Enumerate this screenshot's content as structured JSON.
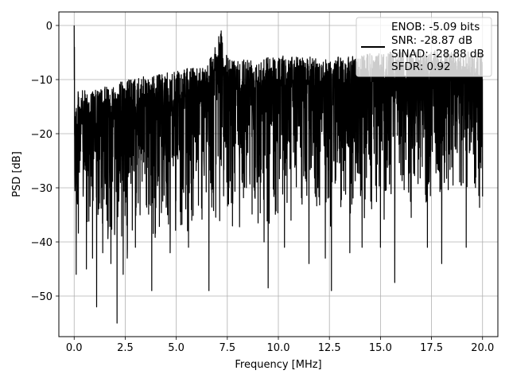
{
  "chart_data": {
    "type": "line",
    "xlabel": "Frequency [MHz]",
    "ylabel": "PSD [dB]",
    "xlim": [
      -0.75,
      20.75
    ],
    "ylim": [
      -57.5,
      2.5
    ],
    "xticks": [
      0.0,
      2.5,
      5.0,
      7.5,
      10.0,
      12.5,
      15.0,
      17.5,
      20.0
    ],
    "xtick_labels": [
      "0.0",
      "2.5",
      "5.0",
      "7.5",
      "10.0",
      "12.5",
      "15.0",
      "17.5",
      "20.0"
    ],
    "yticks": [
      0,
      -10,
      -20,
      -30,
      -40,
      -50
    ],
    "ytick_labels": [
      "0",
      "−10",
      "−20",
      "−30",
      "−40",
      "−50"
    ],
    "grid": true,
    "legend_placement": "top-right",
    "legend": [
      "ENOB: -5.09 bits",
      "SNR: -28.87 dB",
      "SINAD: -28.88 dB",
      "SFDR: 0.92"
    ],
    "series_color": "#000000",
    "grid_color": "#b0b0b0",
    "series": [
      {
        "x_range": [
          0.0,
          20.0
        ],
        "features": {
          "dc_peak": {
            "x": 0.0,
            "y": 0.0
          },
          "spur": {
            "x": 7.2,
            "y": -1.0
          },
          "min_dip": {
            "x": 2.1,
            "y": -55.0
          },
          "upper_envelope": [
            [
              0.0,
              -15
            ],
            [
              0.2,
              -12
            ],
            [
              1.0,
              -12
            ],
            [
              2.5,
              -10
            ],
            [
              5.0,
              -8.5
            ],
            [
              6.5,
              -7
            ],
            [
              7.2,
              -1
            ],
            [
              7.5,
              -6
            ],
            [
              10.0,
              -5.5
            ],
            [
              12.5,
              -6
            ],
            [
              15.0,
              -5
            ],
            [
              17.5,
              -4.5
            ],
            [
              20.0,
              -5
            ]
          ],
          "lower_envelope": [
            [
              0.0,
              -40
            ],
            [
              2.5,
              -42
            ],
            [
              5.0,
              -40
            ],
            [
              10.0,
              -38
            ],
            [
              15.0,
              -38
            ],
            [
              20.0,
              -36
            ]
          ],
          "deep_dips": [
            [
              0.1,
              -46
            ],
            [
              0.6,
              -45
            ],
            [
              0.9,
              -43
            ],
            [
              1.1,
              -52
            ],
            [
              1.4,
              -42
            ],
            [
              1.8,
              -44
            ],
            [
              2.1,
              -55
            ],
            [
              2.4,
              -46
            ],
            [
              2.6,
              -43
            ],
            [
              3.0,
              -41
            ],
            [
              3.8,
              -49
            ],
            [
              4.7,
              -42
            ],
            [
              5.6,
              -41
            ],
            [
              6.6,
              -49
            ],
            [
              9.3,
              -40
            ],
            [
              9.5,
              -48.5
            ],
            [
              10.3,
              -41
            ],
            [
              11.5,
              -44
            ],
            [
              12.3,
              -43
            ],
            [
              12.6,
              -49
            ],
            [
              13.5,
              -42
            ],
            [
              14.1,
              -41
            ],
            [
              15.0,
              -41
            ],
            [
              15.7,
              -47.5
            ],
            [
              17.3,
              -41
            ],
            [
              18.0,
              -44
            ],
            [
              19.2,
              -41
            ]
          ]
        }
      }
    ]
  }
}
